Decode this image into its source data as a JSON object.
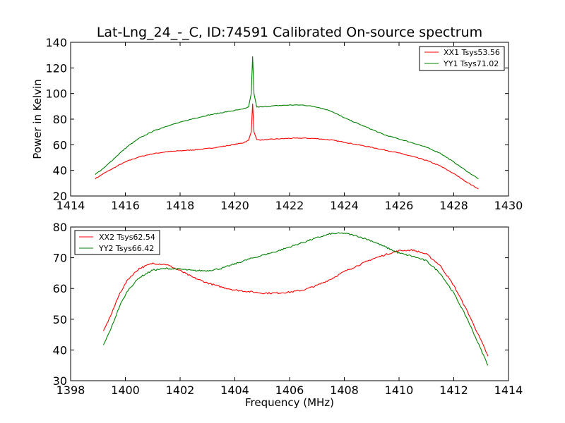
{
  "figure": {
    "title": "Lat-Lng_24_-_C, ID:74591 Calibrated On-source spectrum"
  },
  "chart_data": [
    {
      "type": "line",
      "title": "Lat-Lng_24_-_C, ID:74591 Calibrated On-source spectrum",
      "xlabel": "",
      "ylabel": "Power in Kelvin",
      "xlim": [
        1414,
        1430
      ],
      "ylim": [
        20,
        140
      ],
      "xticks": [
        1414,
        1416,
        1418,
        1420,
        1422,
        1424,
        1426,
        1428,
        1430
      ],
      "yticks": [
        20,
        40,
        60,
        80,
        100,
        120,
        140
      ],
      "grid": false,
      "legend_position": "top-right",
      "series": [
        {
          "name": "XX1 Tsys53.56",
          "color": "#ff0000",
          "points": [
            [
              1414.9,
              33.5
            ],
            [
              1415.2,
              37.5
            ],
            [
              1415.5,
              41.0
            ],
            [
              1415.8,
              44.5
            ],
            [
              1416.1,
              47.5
            ],
            [
              1416.5,
              50.5
            ],
            [
              1417.0,
              53.0
            ],
            [
              1417.5,
              54.5
            ],
            [
              1418.0,
              55.3
            ],
            [
              1418.5,
              56.0
            ],
            [
              1419.0,
              57.0
            ],
            [
              1419.5,
              58.5
            ],
            [
              1420.0,
              60.3
            ],
            [
              1420.3,
              61.5
            ],
            [
              1420.5,
              63.5
            ],
            [
              1420.6,
              70.0
            ],
            [
              1420.65,
              92.0
            ],
            [
              1420.7,
              70.0
            ],
            [
              1420.8,
              64.0
            ],
            [
              1421.0,
              63.8
            ],
            [
              1421.5,
              64.5
            ],
            [
              1422.0,
              65.0
            ],
            [
              1422.5,
              65.2
            ],
            [
              1423.0,
              64.8
            ],
            [
              1423.5,
              63.8
            ],
            [
              1424.0,
              62.0
            ],
            [
              1424.5,
              60.0
            ],
            [
              1425.0,
              58.0
            ],
            [
              1425.5,
              55.8
            ],
            [
              1426.0,
              53.5
            ],
            [
              1426.5,
              50.8
            ],
            [
              1427.0,
              47.8
            ],
            [
              1427.5,
              43.5
            ],
            [
              1428.0,
              37.5
            ],
            [
              1428.5,
              30.5
            ],
            [
              1428.9,
              25.5
            ]
          ]
        },
        {
          "name": "YY1 Tsys71.02",
          "color": "#008000",
          "points": [
            [
              1414.9,
              37.0
            ],
            [
              1415.2,
              41.5
            ],
            [
              1415.5,
              47.5
            ],
            [
              1415.8,
              53.5
            ],
            [
              1416.1,
              59.0
            ],
            [
              1416.5,
              65.0
            ],
            [
              1417.0,
              70.5
            ],
            [
              1417.5,
              74.5
            ],
            [
              1418.0,
              77.5
            ],
            [
              1418.5,
              80.5
            ],
            [
              1419.0,
              83.0
            ],
            [
              1419.5,
              85.0
            ],
            [
              1420.0,
              86.8
            ],
            [
              1420.3,
              87.8
            ],
            [
              1420.5,
              89.5
            ],
            [
              1420.6,
              100.0
            ],
            [
              1420.65,
              129.0
            ],
            [
              1420.7,
              100.0
            ],
            [
              1420.8,
              89.5
            ],
            [
              1421.0,
              89.5
            ],
            [
              1421.5,
              90.5
            ],
            [
              1422.0,
              91.0
            ],
            [
              1422.5,
              91.0
            ],
            [
              1423.0,
              89.5
            ],
            [
              1423.5,
              86.5
            ],
            [
              1424.0,
              81.0
            ],
            [
              1424.5,
              76.5
            ],
            [
              1425.0,
              72.0
            ],
            [
              1425.5,
              67.5
            ],
            [
              1426.0,
              64.5
            ],
            [
              1426.5,
              61.5
            ],
            [
              1427.0,
              58.0
            ],
            [
              1427.5,
              53.5
            ],
            [
              1428.0,
              46.5
            ],
            [
              1428.5,
              39.0
            ],
            [
              1428.9,
              33.5
            ]
          ]
        }
      ]
    },
    {
      "type": "line",
      "title": "",
      "xlabel": "Frequency (MHz)",
      "ylabel": "",
      "xlim": [
        1398,
        1414
      ],
      "ylim": [
        30,
        80
      ],
      "xticks": [
        1398,
        1400,
        1402,
        1404,
        1406,
        1408,
        1410,
        1412,
        1414
      ],
      "yticks": [
        30,
        40,
        50,
        60,
        70,
        80
      ],
      "grid": false,
      "legend_position": "top-left",
      "series": [
        {
          "name": "XX2 Tsys62.54",
          "color": "#ff0000",
          "points": [
            [
              1399.2,
              46.0
            ],
            [
              1399.5,
              52.0
            ],
            [
              1399.8,
              58.5
            ],
            [
              1400.1,
              63.0
            ],
            [
              1400.5,
              66.5
            ],
            [
              1401.0,
              68.2
            ],
            [
              1401.5,
              67.8
            ],
            [
              1402.0,
              65.8
            ],
            [
              1402.5,
              63.5
            ],
            [
              1403.0,
              61.8
            ],
            [
              1403.5,
              60.5
            ],
            [
              1404.0,
              59.5
            ],
            [
              1404.5,
              59.0
            ],
            [
              1405.0,
              58.5
            ],
            [
              1405.5,
              58.5
            ],
            [
              1406.0,
              58.8
            ],
            [
              1406.5,
              59.5
            ],
            [
              1407.0,
              61.0
            ],
            [
              1407.5,
              63.0
            ],
            [
              1408.0,
              65.5
            ],
            [
              1408.5,
              67.5
            ],
            [
              1409.0,
              69.5
            ],
            [
              1409.5,
              71.0
            ],
            [
              1410.0,
              72.3
            ],
            [
              1410.5,
              72.5
            ],
            [
              1411.0,
              71.2
            ],
            [
              1411.5,
              67.5
            ],
            [
              1412.0,
              61.0
            ],
            [
              1412.5,
              52.5
            ],
            [
              1413.0,
              43.0
            ],
            [
              1413.25,
              38.0
            ]
          ]
        },
        {
          "name": "YY2 Tsys66.42",
          "color": "#008000",
          "points": [
            [
              1399.2,
              41.5
            ],
            [
              1399.5,
              47.5
            ],
            [
              1399.8,
              54.5
            ],
            [
              1400.1,
              59.5
            ],
            [
              1400.5,
              63.5
            ],
            [
              1401.0,
              66.0
            ],
            [
              1401.5,
              66.5
            ],
            [
              1402.0,
              66.3
            ],
            [
              1402.5,
              65.8
            ],
            [
              1403.0,
              65.8
            ],
            [
              1403.5,
              66.5
            ],
            [
              1404.0,
              68.0
            ],
            [
              1404.5,
              69.5
            ],
            [
              1405.0,
              70.8
            ],
            [
              1405.5,
              72.0
            ],
            [
              1406.0,
              73.5
            ],
            [
              1406.5,
              75.0
            ],
            [
              1407.0,
              76.5
            ],
            [
              1407.5,
              77.8
            ],
            [
              1408.0,
              78.0
            ],
            [
              1408.5,
              77.0
            ],
            [
              1409.0,
              75.5
            ],
            [
              1409.5,
              73.5
            ],
            [
              1410.0,
              71.5
            ],
            [
              1410.5,
              70.5
            ],
            [
              1411.0,
              69.0
            ],
            [
              1411.5,
              65.0
            ],
            [
              1412.0,
              58.5
            ],
            [
              1412.5,
              50.0
            ],
            [
              1413.0,
              40.0
            ],
            [
              1413.25,
              35.0
            ]
          ]
        }
      ]
    }
  ]
}
